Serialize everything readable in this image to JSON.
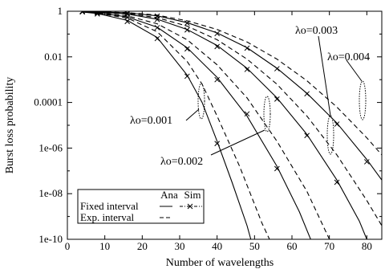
{
  "chart_data": {
    "type": "line",
    "xlabel": "Number of wavelengths",
    "ylabel": "Burst loss probability",
    "xlim": [
      0,
      84
    ],
    "ylim_log10": [
      -10,
      0
    ],
    "y_scale": "log",
    "grid": false,
    "x_ticks": [
      {
        "value": 0,
        "label": "0"
      },
      {
        "value": 10,
        "label": "10"
      },
      {
        "value": 20,
        "label": "20"
      },
      {
        "value": 30,
        "label": "30"
      },
      {
        "value": 40,
        "label": "40"
      },
      {
        "value": 50,
        "label": "50"
      },
      {
        "value": 60,
        "label": "60"
      },
      {
        "value": 70,
        "label": "70"
      },
      {
        "value": 80,
        "label": "80"
      }
    ],
    "y_ticks": [
      {
        "exp": 0,
        "label": "1"
      },
      {
        "exp": -2,
        "label": "0.01"
      },
      {
        "exp": -4,
        "label": "0.0001"
      },
      {
        "exp": -6,
        "label": "1e-06"
      },
      {
        "exp": -8,
        "label": "1e-08"
      },
      {
        "exp": -10,
        "label": "1e-10"
      }
    ],
    "annotations": [
      "λo=0.001",
      "λo=0.002",
      "λo=0.003",
      "λo=0.004"
    ],
    "legend": {
      "position": "bottom-left",
      "col_headers": [
        "Ana",
        "Sim"
      ],
      "entries": [
        "Fixed interval",
        "Exp. interval"
      ]
    },
    "series": [
      {
        "group": "λo=0.001",
        "kind": "Fixed interval Ana",
        "points": [
          [
            4,
            -0.03
          ],
          [
            8,
            -0.1
          ],
          [
            16,
            -0.4
          ],
          [
            24,
            -1.15
          ],
          [
            32,
            -2.8
          ],
          [
            36,
            -4.0
          ],
          [
            40,
            -5.7
          ],
          [
            44,
            -7.5
          ],
          [
            48,
            -9.4
          ],
          [
            49,
            -10
          ]
        ]
      },
      {
        "group": "λo=0.001",
        "kind": "Exp. interval Ana",
        "points": [
          [
            4,
            -0.03
          ],
          [
            8,
            -0.08
          ],
          [
            16,
            -0.3
          ],
          [
            24,
            -0.9
          ],
          [
            32,
            -2.2
          ],
          [
            36,
            -3.2
          ],
          [
            40,
            -4.6
          ],
          [
            46,
            -6.8
          ],
          [
            52,
            -9.3
          ],
          [
            54,
            -10
          ]
        ]
      },
      {
        "group": "λo=0.001",
        "kind": "Fixed interval Sim",
        "points": [
          [
            4,
            -0.03
          ],
          [
            8,
            -0.12
          ],
          [
            16,
            -0.45
          ],
          [
            24,
            -1.2
          ],
          [
            32,
            -2.85
          ],
          [
            40,
            -5.8
          ]
        ]
      },
      {
        "group": "λo=0.002",
        "kind": "Fixed interval Ana",
        "points": [
          [
            4,
            -0.02
          ],
          [
            8,
            -0.06
          ],
          [
            16,
            -0.25
          ],
          [
            24,
            -0.7
          ],
          [
            32,
            -1.6
          ],
          [
            40,
            -2.9
          ],
          [
            48,
            -4.6
          ],
          [
            56,
            -6.8
          ],
          [
            62,
            -8.8
          ],
          [
            65,
            -10
          ]
        ]
      },
      {
        "group": "λo=0.002",
        "kind": "Exp. interval Ana",
        "points": [
          [
            4,
            -0.02
          ],
          [
            8,
            -0.05
          ],
          [
            16,
            -0.2
          ],
          [
            24,
            -0.55
          ],
          [
            32,
            -1.25
          ],
          [
            40,
            -2.35
          ],
          [
            48,
            -3.8
          ],
          [
            56,
            -5.7
          ],
          [
            64,
            -7.9
          ],
          [
            70,
            -10
          ]
        ]
      },
      {
        "group": "λo=0.002",
        "kind": "Fixed interval Sim",
        "points": [
          [
            4,
            -0.02
          ],
          [
            8,
            -0.07
          ],
          [
            16,
            -0.27
          ],
          [
            24,
            -0.72
          ],
          [
            32,
            -1.65
          ],
          [
            40,
            -3.0
          ],
          [
            48,
            -4.5
          ],
          [
            56,
            -6.9
          ]
        ]
      },
      {
        "group": "λo=0.003",
        "kind": "Fixed interval Ana",
        "points": [
          [
            4,
            -0.01
          ],
          [
            8,
            -0.03
          ],
          [
            16,
            -0.12
          ],
          [
            24,
            -0.35
          ],
          [
            32,
            -0.8
          ],
          [
            40,
            -1.5
          ],
          [
            48,
            -2.5
          ],
          [
            56,
            -3.8
          ],
          [
            64,
            -5.4
          ],
          [
            72,
            -7.4
          ],
          [
            78,
            -9.2
          ],
          [
            80,
            -10
          ]
        ]
      },
      {
        "group": "λo=0.003",
        "kind": "Exp. interval Ana",
        "points": [
          [
            4,
            -0.01
          ],
          [
            8,
            -0.02
          ],
          [
            16,
            -0.1
          ],
          [
            24,
            -0.28
          ],
          [
            32,
            -0.65
          ],
          [
            40,
            -1.25
          ],
          [
            48,
            -2.1
          ],
          [
            56,
            -3.2
          ],
          [
            64,
            -4.6
          ],
          [
            72,
            -6.3
          ],
          [
            80,
            -8.3
          ],
          [
            84,
            -9.4
          ]
        ]
      },
      {
        "group": "λo=0.003",
        "kind": "Fixed interval Sim",
        "points": [
          [
            4,
            -0.01
          ],
          [
            8,
            -0.04
          ],
          [
            16,
            -0.13
          ],
          [
            24,
            -0.36
          ],
          [
            32,
            -0.82
          ],
          [
            40,
            -1.55
          ],
          [
            48,
            -2.55
          ],
          [
            56,
            -3.85
          ],
          [
            64,
            -5.45
          ],
          [
            72,
            -7.5
          ]
        ]
      },
      {
        "group": "λo=0.004",
        "kind": "Fixed interval Ana",
        "points": [
          [
            4,
            -0.01
          ],
          [
            8,
            -0.02
          ],
          [
            16,
            -0.07
          ],
          [
            24,
            -0.2
          ],
          [
            32,
            -0.5
          ],
          [
            40,
            -0.95
          ],
          [
            48,
            -1.6
          ],
          [
            56,
            -2.5
          ],
          [
            64,
            -3.6
          ],
          [
            72,
            -4.9
          ],
          [
            80,
            -6.5
          ],
          [
            84,
            -7.4
          ]
        ]
      },
      {
        "group": "λo=0.004",
        "kind": "Exp. interval Ana",
        "points": [
          [
            4,
            -0.01
          ],
          [
            8,
            -0.02
          ],
          [
            16,
            -0.06
          ],
          [
            24,
            -0.17
          ],
          [
            32,
            -0.42
          ],
          [
            40,
            -0.8
          ],
          [
            48,
            -1.35
          ],
          [
            56,
            -2.1
          ],
          [
            64,
            -3.05
          ],
          [
            72,
            -4.2
          ],
          [
            80,
            -5.55
          ],
          [
            84,
            -6.3
          ]
        ]
      },
      {
        "group": "λo=0.004",
        "kind": "Fixed interval Sim",
        "points": [
          [
            4,
            -0.01
          ],
          [
            8,
            -0.03
          ],
          [
            16,
            -0.08
          ],
          [
            24,
            -0.21
          ],
          [
            32,
            -0.52
          ],
          [
            40,
            -0.98
          ],
          [
            48,
            -1.62
          ],
          [
            56,
            -2.52
          ],
          [
            64,
            -3.62
          ],
          [
            72,
            -4.95
          ],
          [
            80,
            -6.6
          ]
        ]
      }
    ]
  }
}
